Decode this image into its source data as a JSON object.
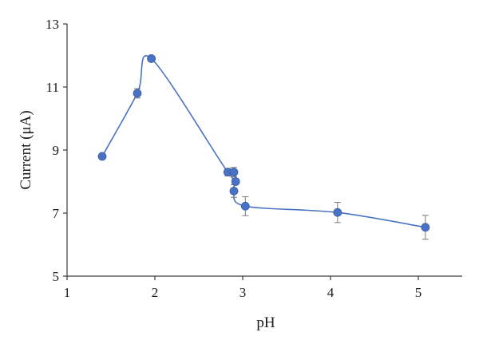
{
  "chart_data": {
    "type": "scatter",
    "xlabel": "pH",
    "ylabel": "Current (μA)",
    "xlim": [
      1,
      5.5
    ],
    "ylim": [
      5,
      13
    ],
    "xticks": [
      1,
      2,
      3,
      4,
      5
    ],
    "yticks": [
      5,
      7,
      9,
      11,
      13
    ],
    "grid": false,
    "smooth_line": true,
    "color": "#4a72c4",
    "series": [
      {
        "points": [
          {
            "x": 1.4,
            "y": 8.8,
            "err": 0.08
          },
          {
            "x": 1.8,
            "y": 10.8,
            "err": 0.15
          },
          {
            "x": 1.96,
            "y": 11.9,
            "err": 0.08
          },
          {
            "x": 2.83,
            "y": 8.3,
            "err": 0.12
          },
          {
            "x": 2.9,
            "y": 8.3,
            "err": 0.15
          },
          {
            "x": 2.92,
            "y": 8.0,
            "err": 0.05
          },
          {
            "x": 2.9,
            "y": 7.7,
            "err": 0.2
          },
          {
            "x": 3.03,
            "y": 7.22,
            "err": 0.3
          },
          {
            "x": 4.08,
            "y": 7.02,
            "err": 0.32
          },
          {
            "x": 5.08,
            "y": 6.55,
            "err": 0.38
          }
        ]
      }
    ]
  }
}
